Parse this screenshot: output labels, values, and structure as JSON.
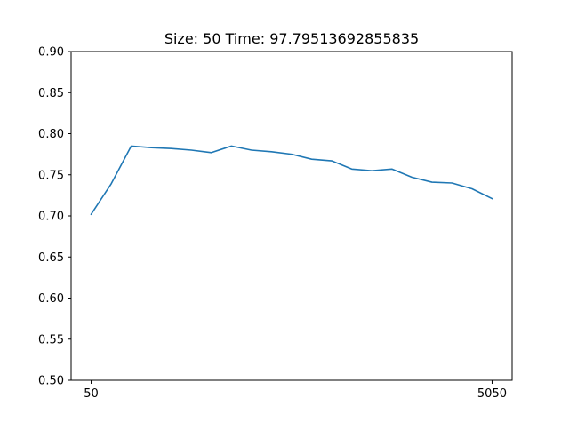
{
  "chart_data": {
    "type": "line",
    "title": "Size: 50 Time: 97.79513692855835",
    "xlabel": "",
    "ylabel": "",
    "x_tick_labels": [
      "50",
      "5050"
    ],
    "y_tick_labels": [
      "0.50",
      "0.55",
      "0.60",
      "0.65",
      "0.70",
      "0.75",
      "0.80",
      "0.85",
      "0.90"
    ],
    "xlim": [
      -200,
      5300
    ],
    "ylim": [
      0.5,
      0.9
    ],
    "grid": false,
    "series": [
      {
        "color": "#1f77b4",
        "x": [
          50,
          300,
          550,
          800,
          1050,
          1300,
          1550,
          1800,
          2050,
          2300,
          2550,
          2800,
          3050,
          3300,
          3550,
          3800,
          4050,
          4300,
          4550,
          4800,
          5050
        ],
        "y": [
          0.702,
          0.739,
          0.785,
          0.783,
          0.782,
          0.78,
          0.777,
          0.785,
          0.78,
          0.778,
          0.775,
          0.769,
          0.767,
          0.757,
          0.755,
          0.757,
          0.747,
          0.741,
          0.74,
          0.733,
          0.721
        ]
      }
    ]
  }
}
